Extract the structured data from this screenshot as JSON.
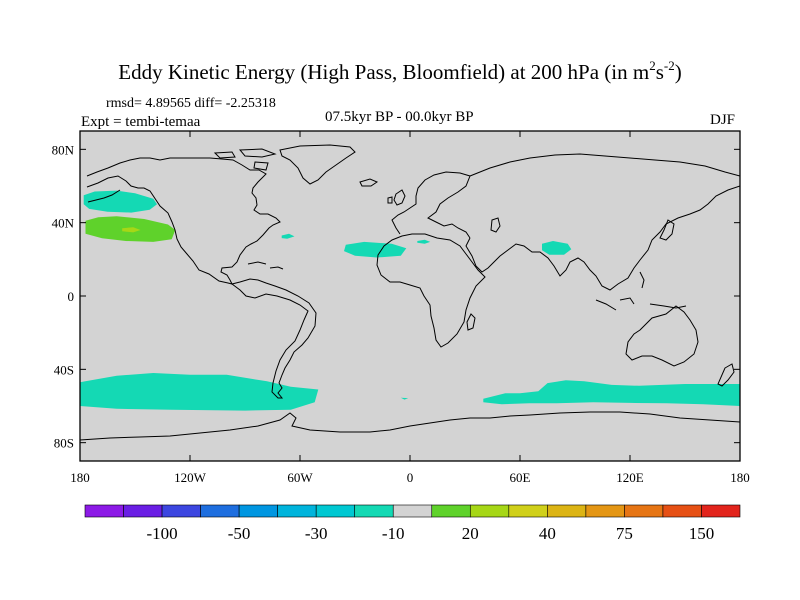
{
  "title": {
    "main": "Eddy Kinetic Energy (High Pass, Bloomfield) at 200 hPa (in m",
    "unit_sup1": "2",
    "unit_s": "s",
    "unit_sup2": "-2",
    "close": ")"
  },
  "stats": {
    "rmsd": "rmsd= 4.89565 diff= -2.25318",
    "expt": "Expt = tembi-temaa",
    "period": "07.5kyr BP - 00.0kyr BP",
    "season": "DJF"
  },
  "map": {
    "lon_range": [
      -180,
      180
    ],
    "lat_range": [
      -90,
      90
    ],
    "lon_ticks": [
      {
        "lon": -180,
        "label": "180"
      },
      {
        "lon": -120,
        "label": "120W"
      },
      {
        "lon": -60,
        "label": "60W"
      },
      {
        "lon": 0,
        "label": "0"
      },
      {
        "lon": 60,
        "label": "60E"
      },
      {
        "lon": 120,
        "label": "120E"
      },
      {
        "lon": 180,
        "label": "180"
      }
    ],
    "lat_ticks": [
      {
        "lat": 80,
        "label": "80N"
      },
      {
        "lat": 40,
        "label": "40N"
      },
      {
        "lat": 0,
        "label": "0"
      },
      {
        "lat": -40,
        "label": "40S"
      },
      {
        "lat": -80,
        "label": "80S"
      }
    ],
    "background_color": "#d3d3d3",
    "regions": [
      {
        "name": "north-pacific-negative-band",
        "color": "#14d9b4",
        "pts": [
          [
            -178,
            55
          ],
          [
            -172,
            57
          ],
          [
            -160,
            57.5
          ],
          [
            -150,
            56
          ],
          [
            -140,
            53
          ],
          [
            -138,
            50
          ],
          [
            -142,
            47
          ],
          [
            -152,
            45.5
          ],
          [
            -165,
            46
          ],
          [
            -175,
            47.5
          ],
          [
            -178,
            50
          ]
        ]
      },
      {
        "name": "north-pacific-positive-band",
        "color": "#5fd22b",
        "pts": [
          [
            -177,
            41
          ],
          [
            -170,
            43
          ],
          [
            -160,
            43.5
          ],
          [
            -145,
            42
          ],
          [
            -132,
            39
          ],
          [
            -128,
            36
          ],
          [
            -130,
            31
          ],
          [
            -140,
            29.5
          ],
          [
            -155,
            30
          ],
          [
            -168,
            31.5
          ],
          [
            -177,
            34
          ]
        ]
      },
      {
        "name": "north-pacific-core",
        "color": "#a6d716",
        "pts": [
          [
            -157,
            37
          ],
          [
            -151,
            37.5
          ],
          [
            -147,
            36
          ],
          [
            -151,
            34.7
          ],
          [
            -157,
            35.3
          ]
        ]
      },
      {
        "name": "mid-atlantic-small-patch",
        "color": "#14d9b4",
        "pts": [
          [
            -70,
            33
          ],
          [
            -66,
            34
          ],
          [
            -63,
            32.5
          ],
          [
            -67,
            31.2
          ],
          [
            -70,
            31.6
          ]
        ]
      },
      {
        "name": "north-africa-patch",
        "color": "#14d9b4",
        "pts": [
          [
            -35,
            28
          ],
          [
            -25,
            29.5
          ],
          [
            -10,
            28.5
          ],
          [
            -2,
            26
          ],
          [
            -5,
            22
          ],
          [
            -18,
            21
          ],
          [
            -30,
            22
          ],
          [
            -36,
            24.5
          ]
        ]
      },
      {
        "name": "mediterranean-small-patch",
        "color": "#14d9b4",
        "pts": [
          [
            4,
            30
          ],
          [
            8,
            30.7
          ],
          [
            11,
            29.5
          ],
          [
            8,
            28.5
          ],
          [
            4,
            29
          ]
        ]
      },
      {
        "name": "himalaya-patch",
        "color": "#14d9b4",
        "pts": [
          [
            72,
            28.5
          ],
          [
            78,
            30
          ],
          [
            86,
            28.5
          ],
          [
            88,
            25.5
          ],
          [
            84,
            22.5
          ],
          [
            76,
            22.5
          ],
          [
            72,
            25
          ]
        ]
      },
      {
        "name": "south-pacific-band",
        "color": "#14d9b4",
        "pts": [
          [
            -180,
            -47
          ],
          [
            -160,
            -43.5
          ],
          [
            -140,
            -42
          ],
          [
            -120,
            -43
          ],
          [
            -100,
            -43
          ],
          [
            -78,
            -46.5
          ],
          [
            -65,
            -49.5
          ],
          [
            -50,
            -51
          ],
          [
            -52,
            -58
          ],
          [
            -65,
            -62
          ],
          [
            -90,
            -62.5
          ],
          [
            -130,
            -62
          ],
          [
            -160,
            -61.5
          ],
          [
            -180,
            -60
          ]
        ]
      },
      {
        "name": "south-atlantic-small-patch",
        "color": "#14d9b4",
        "pts": [
          [
            -5,
            -55.5
          ],
          [
            -1,
            -55.7
          ],
          [
            -3,
            -56.5
          ]
        ]
      },
      {
        "name": "southern-indian-band",
        "color": "#14d9b4",
        "pts": [
          [
            40,
            -56
          ],
          [
            52,
            -53
          ],
          [
            60,
            -53
          ],
          [
            70,
            -52
          ],
          [
            75,
            -47.5
          ],
          [
            85,
            -46
          ],
          [
            95,
            -46.5
          ],
          [
            110,
            -48.5
          ],
          [
            125,
            -49
          ],
          [
            150,
            -48
          ],
          [
            180,
            -48
          ],
          [
            180,
            -60
          ],
          [
            160,
            -59
          ],
          [
            140,
            -58.5
          ],
          [
            120,
            -58.3
          ],
          [
            100,
            -58
          ],
          [
            80,
            -58.5
          ],
          [
            65,
            -58.5
          ],
          [
            50,
            -59
          ],
          [
            40,
            -58
          ]
        ]
      }
    ],
    "coastline_color": "#000000"
  },
  "colorbar": {
    "colors": [
      "#8c1ae6",
      "#6a1ee4",
      "#3c46e0",
      "#1e6edf",
      "#0096e1",
      "#00b4dc",
      "#00c8d2",
      "#14d9b4",
      "#d3d3d3",
      "#5fd22b",
      "#a6d716",
      "#d0d01a",
      "#dcb414",
      "#e49614",
      "#e67514",
      "#e65014",
      "#e2241c"
    ],
    "labels": [
      {
        "after_box": 2,
        "text": "-100"
      },
      {
        "after_box": 4,
        "text": "-50"
      },
      {
        "after_box": 6,
        "text": "-30"
      },
      {
        "after_box": 8,
        "text": "-10"
      },
      {
        "after_box": 10,
        "text": "20"
      },
      {
        "after_box": 12,
        "text": "40"
      },
      {
        "after_box": 14,
        "text": "75"
      },
      {
        "after_box": 16,
        "text": "150"
      }
    ]
  }
}
